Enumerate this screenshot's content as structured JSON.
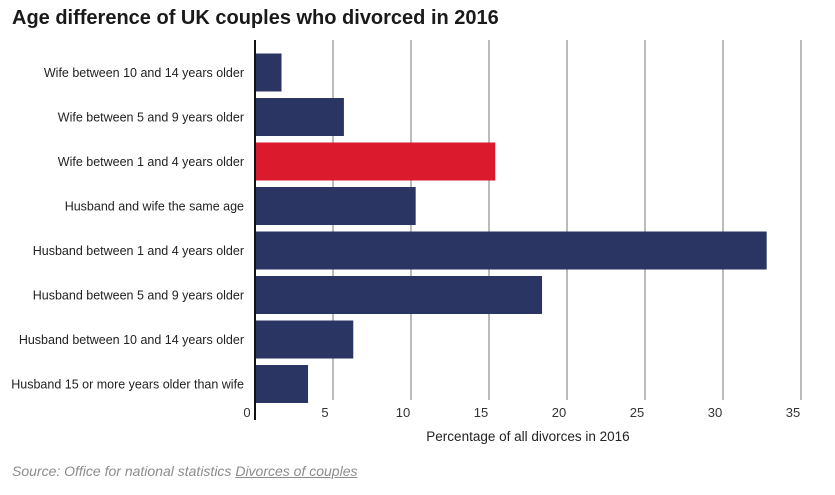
{
  "title": "Age difference of UK couples who divorced in 2016",
  "source": {
    "prefix": "Source: Office for national statistics",
    "link": "Divorces of couples"
  },
  "colors": {
    "bar": "#2b3564",
    "highlight": "#dc1a2e",
    "grid": "#777777",
    "axis": "#111111"
  },
  "chart_data": {
    "type": "bar",
    "orientation": "horizontal",
    "categories": [
      "Wife between 10 and 14 years older",
      "Wife between 5 and 9 years older",
      "Wife between 1 and 4 years older",
      "Husband and wife the same age",
      "Husband between 1 and 4 years older",
      "Husband between 5 and 9 years older",
      "Husband between 10 and 14 years older",
      "Husband 15 or more years older than wife"
    ],
    "values": [
      1.7,
      5.7,
      15.4,
      10.3,
      32.8,
      18.4,
      6.3,
      3.4
    ],
    "highlight_index": 2,
    "xlabel": "Percentage of all divorces in 2016",
    "xlim": [
      0,
      35
    ],
    "xticks": [
      0,
      5,
      10,
      15,
      20,
      25,
      30,
      35
    ],
    "grid": "vertical"
  }
}
